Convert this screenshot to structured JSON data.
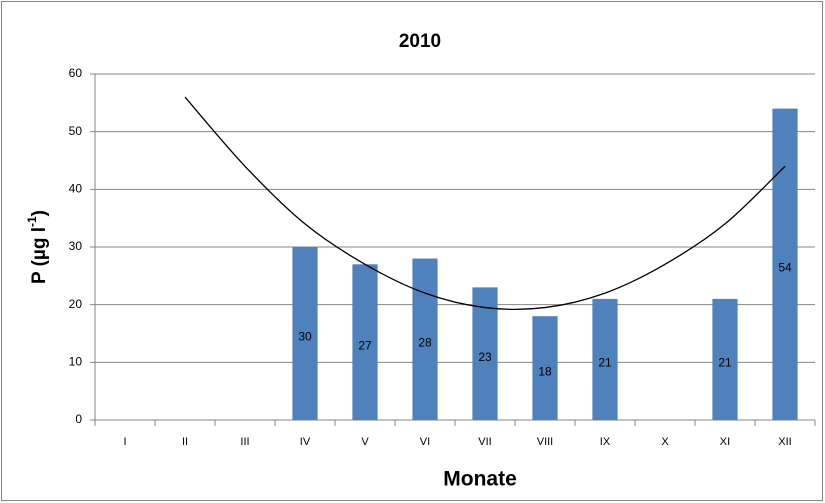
{
  "chart_data": {
    "type": "bar",
    "title": "2010",
    "xlabel": "Monate",
    "ylabel": [
      "P (µg l",
      "-1",
      ")"
    ],
    "categories": [
      "I",
      "II",
      "III",
      "IV",
      "V",
      "VI",
      "VII",
      "VIII",
      "IX",
      "X",
      "XI",
      "XII"
    ],
    "values": [
      null,
      null,
      null,
      30,
      27,
      28,
      23,
      18,
      21,
      null,
      21,
      54
    ],
    "color": "#4f81bd",
    "trendline": {
      "color": "#000000",
      "values": [
        null,
        56,
        44,
        34,
        27,
        22,
        19.5,
        19.5,
        22,
        27,
        34,
        44
      ]
    },
    "ylim": [
      0,
      60
    ],
    "yticks": [
      0,
      10,
      20,
      30,
      40,
      50,
      60
    ],
    "grid": true
  }
}
